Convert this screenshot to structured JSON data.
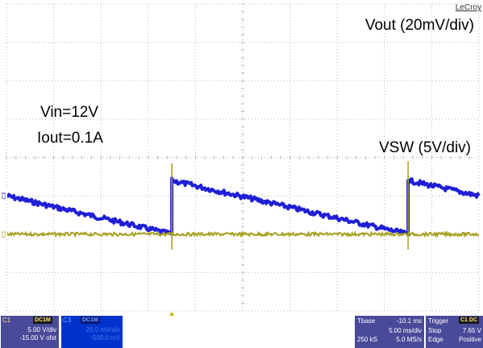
{
  "chart_data": {
    "type": "line",
    "title": "",
    "brand": "LeCroy",
    "grid": true,
    "x_divisions": 10,
    "y_divisions": 8,
    "time_per_div_ms": 5.0,
    "annotations": {
      "vin": "Vin=12V",
      "iout": "Iout=0.1A"
    },
    "series": [
      {
        "name": "Vout (20mV/div)",
        "channel_marker": "C3",
        "color": "#1f1fd6",
        "waveform": "sawtooth",
        "x_div": [
          0.0,
          3.5,
          3.5,
          8.5,
          8.5,
          10.0
        ],
        "y_div": [
          -1.0,
          -2.0,
          -0.6,
          -2.0,
          -0.6,
          -1.0
        ]
      },
      {
        "name": "VSW (5V/div)",
        "channel_marker": "C1",
        "color": "#a8a020",
        "waveform": "pulse",
        "baseline_div": 2.0,
        "spikes": [
          {
            "x_div": 3.5,
            "top_div": 0.15,
            "bottom_div": 2.4
          },
          {
            "x_div": 8.5,
            "top_div": 0.1,
            "bottom_div": 2.4
          }
        ]
      }
    ],
    "trigger_marker_x_div": 3.5
  },
  "status": {
    "c1": {
      "label": "C1",
      "badge": "DC1M",
      "vdiv": "5.00 V/div",
      "offset": "-15.00 V ofst"
    },
    "c3": {
      "label": "C3",
      "badge": "DC1M",
      "line1": "20.0 mV/div",
      "line2": "-500.0 mV"
    },
    "timebase": {
      "label": "Tbase",
      "delay": "-10.1 ms",
      "tdiv": "5.00 ms/div",
      "samples": "250 kS",
      "rate": "5.0 MS/s"
    },
    "trigger": {
      "label": "Trigger",
      "badge": "C1 DC",
      "mode": "Stop",
      "level": "7.65 V",
      "type": "Edge",
      "slope": "Positive"
    }
  },
  "colors": {
    "c3": "#1f1fd6",
    "c1": "#a8a020",
    "grid": "#b8b8b8",
    "panel_c1": "#4a4a9a",
    "panel_c3": "#0033cc",
    "panel_tb": "#4a4a9a"
  }
}
